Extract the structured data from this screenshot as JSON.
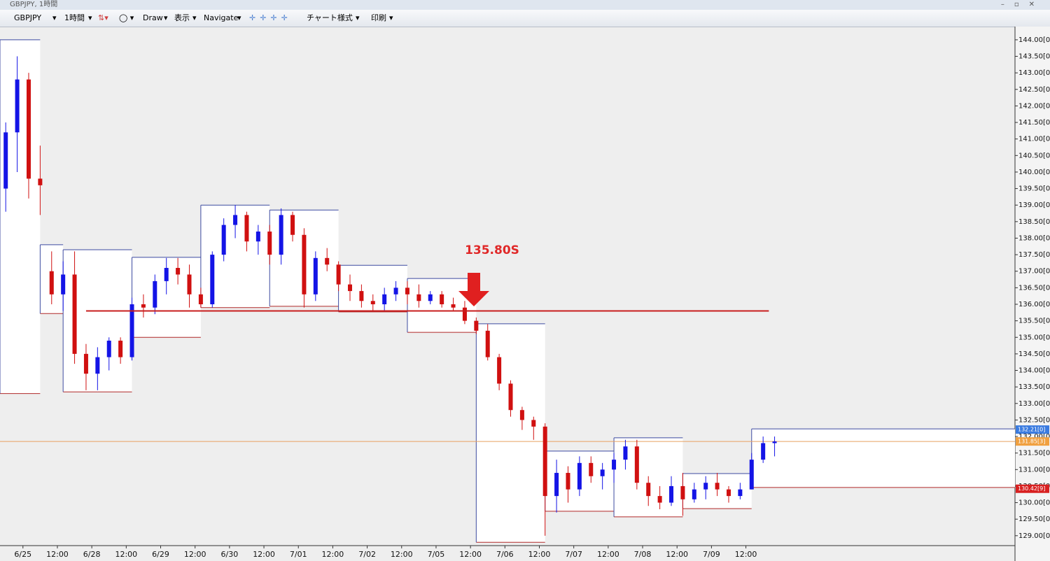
{
  "window": {
    "title": "GBPJPY, 1時間"
  },
  "toolbar": {
    "symbol": "GBPJPY",
    "timeframe": "1時間",
    "draw": "Draw",
    "view": "表示",
    "navigate": "Navigate",
    "chart_style": "チャート様式",
    "print": "印刷"
  },
  "chart_data": {
    "type": "candlestick",
    "xlim": [
      0,
      366
    ],
    "ylim": [
      128.7,
      144.4
    ],
    "xticks": [
      {
        "value": 8,
        "label": "6/25"
      },
      {
        "value": 20,
        "label": "12:00"
      },
      {
        "value": 32,
        "label": "6/28"
      },
      {
        "value": 44,
        "label": "12:00"
      },
      {
        "value": 56,
        "label": "6/29"
      },
      {
        "value": 68,
        "label": "12:00"
      },
      {
        "value": 80,
        "label": "6/30"
      },
      {
        "value": 92,
        "label": "12:00"
      },
      {
        "value": 104,
        "label": "7/01"
      },
      {
        "value": 116,
        "label": "12:00"
      },
      {
        "value": 128,
        "label": "7/02"
      },
      {
        "value": 140,
        "label": "12:00"
      },
      {
        "value": 152,
        "label": "7/05"
      },
      {
        "value": 164,
        "label": "12:00"
      },
      {
        "value": 176,
        "label": "7/06"
      },
      {
        "value": 188,
        "label": "12:00"
      },
      {
        "value": 200,
        "label": "7/07"
      },
      {
        "value": 212,
        "label": "12:00"
      },
      {
        "value": 224,
        "label": "7/08"
      },
      {
        "value": 236,
        "label": "12:00"
      },
      {
        "value": 248,
        "label": "7/09"
      },
      {
        "value": 260,
        "label": "12:00"
      }
    ],
    "yticks": [
      {
        "value": 129,
        "label": "129.00[0]"
      },
      {
        "value": 129.5,
        "label": "129.50[0]"
      },
      {
        "value": 130,
        "label": "130.00[0]"
      },
      {
        "value": 130.5,
        "label": "130.50[0]"
      },
      {
        "value": 131,
        "label": "131.00[0]"
      },
      {
        "value": 131.5,
        "label": "131.50[0]"
      },
      {
        "value": 132,
        "label": "132.00[0]"
      },
      {
        "value": 132.5,
        "label": "132.50[0]"
      },
      {
        "value": 133,
        "label": "133.00[0]"
      },
      {
        "value": 133.5,
        "label": "133.50[0]"
      },
      {
        "value": 134,
        "label": "134.00[0]"
      },
      {
        "value": 134.5,
        "label": "134.50[0]"
      },
      {
        "value": 135,
        "label": "135.00[0]"
      },
      {
        "value": 135.5,
        "label": "135.50[0]"
      },
      {
        "value": 136,
        "label": "136.00[0]"
      },
      {
        "value": 136.5,
        "label": "136.50[0]"
      },
      {
        "value": 137,
        "label": "137.00[0]"
      },
      {
        "value": 137.5,
        "label": "137.50[0]"
      },
      {
        "value": 138,
        "label": "138.00[0]"
      },
      {
        "value": 138.5,
        "label": "138.50[0]"
      },
      {
        "value": 139,
        "label": "139.00[0]"
      },
      {
        "value": 139.5,
        "label": "139.50[0]"
      },
      {
        "value": 140,
        "label": "140.00[0]"
      },
      {
        "value": 140.5,
        "label": "140.50[0]"
      },
      {
        "value": 141,
        "label": "141.00[0]"
      },
      {
        "value": 141.5,
        "label": "141.50[0]"
      },
      {
        "value": 142,
        "label": "142.00[0]"
      },
      {
        "value": 142.5,
        "label": "142.50[0]"
      },
      {
        "value": 143,
        "label": "143.00[0]"
      },
      {
        "value": 143.5,
        "label": "143.50[0]"
      },
      {
        "value": 144,
        "label": "144.00[0]"
      }
    ],
    "up_color": "#1414e6",
    "down_color": "#d01010",
    "x": [
      2,
      6,
      10,
      14,
      18,
      22,
      26,
      30,
      34,
      38,
      42,
      46,
      50,
      54,
      58,
      62,
      66,
      70,
      74,
      78,
      82,
      86,
      90,
      94,
      98,
      102,
      106,
      110,
      114,
      118,
      122,
      126,
      130,
      134,
      138,
      142,
      146,
      150,
      154,
      158,
      162,
      166,
      170,
      174,
      178,
      182,
      186,
      190,
      194,
      198,
      202,
      206,
      210,
      214,
      218,
      222,
      226,
      230,
      234,
      238,
      242,
      246,
      250,
      254,
      258,
      262,
      266,
      270
    ],
    "open": [
      139.5,
      141.2,
      142.8,
      139.8,
      137.0,
      136.3,
      136.9,
      134.5,
      133.9,
      134.4,
      134.9,
      134.4,
      136.0,
      135.9,
      136.7,
      137.1,
      136.9,
      136.3,
      136.0,
      137.5,
      138.4,
      138.7,
      137.9,
      138.2,
      137.5,
      138.7,
      138.1,
      136.3,
      137.4,
      137.2,
      136.6,
      136.4,
      136.1,
      136.0,
      136.3,
      136.5,
      136.3,
      136.1,
      136.3,
      136.0,
      135.9,
      135.5,
      135.2,
      134.4,
      133.6,
      132.8,
      132.5,
      132.3,
      130.2,
      130.9,
      130.4,
      131.2,
      130.8,
      131.0,
      131.3,
      131.7,
      130.6,
      130.2,
      130.0,
      130.5,
      130.1,
      130.4,
      130.6,
      130.4,
      130.2,
      130.4,
      131.3,
      131.8
    ],
    "high": [
      141.5,
      143.5,
      143.0,
      140.8,
      137.6,
      137.3,
      137.6,
      134.8,
      134.7,
      135.0,
      135.0,
      136.2,
      136.3,
      136.9,
      137.4,
      137.4,
      137.2,
      136.5,
      137.6,
      138.6,
      139.0,
      138.8,
      138.4,
      138.4,
      138.9,
      138.8,
      138.3,
      137.6,
      137.7,
      137.3,
      136.9,
      136.6,
      136.3,
      136.5,
      136.7,
      136.7,
      136.6,
      136.4,
      136.4,
      136.2,
      136.1,
      135.6,
      135.4,
      134.5,
      133.7,
      132.9,
      132.6,
      132.4,
      131.3,
      131.1,
      131.4,
      131.4,
      131.2,
      131.5,
      131.9,
      131.9,
      130.8,
      130.5,
      130.8,
      130.9,
      130.6,
      130.8,
      130.9,
      130.5,
      130.6,
      131.5,
      132.0,
      132.0
    ],
    "low": [
      138.8,
      140.0,
      139.2,
      138.7,
      136.0,
      135.8,
      134.2,
      133.4,
      133.4,
      134.0,
      134.2,
      134.3,
      135.6,
      135.7,
      136.3,
      136.6,
      135.9,
      135.9,
      135.9,
      137.3,
      138.0,
      137.6,
      137.5,
      137.2,
      137.2,
      137.9,
      135.9,
      136.1,
      137.0,
      136.4,
      136.1,
      135.9,
      135.8,
      135.8,
      136.1,
      136.0,
      135.9,
      136.0,
      135.9,
      135.8,
      135.4,
      135.1,
      134.3,
      133.4,
      132.6,
      132.2,
      131.9,
      129.0,
      129.7,
      130.0,
      130.2,
      130.6,
      130.4,
      130.6,
      131.0,
      130.4,
      129.9,
      129.8,
      129.9,
      129.6,
      130.0,
      130.1,
      130.2,
      130.0,
      130.1,
      130.4,
      131.2,
      131.4
    ],
    "close": [
      141.2,
      142.8,
      139.8,
      139.6,
      136.3,
      136.9,
      134.5,
      133.9,
      134.4,
      134.9,
      134.4,
      136.0,
      135.9,
      136.7,
      137.1,
      136.9,
      136.3,
      136.0,
      137.5,
      138.4,
      138.7,
      137.9,
      138.2,
      137.5,
      138.7,
      138.1,
      136.3,
      137.4,
      137.2,
      136.6,
      136.4,
      136.1,
      136.0,
      136.3,
      136.5,
      136.3,
      136.1,
      136.3,
      136.0,
      135.9,
      135.5,
      135.2,
      134.4,
      133.6,
      132.8,
      132.5,
      132.3,
      130.2,
      130.9,
      130.4,
      131.2,
      130.8,
      131.0,
      131.3,
      131.7,
      130.6,
      130.2,
      130.0,
      130.5,
      130.1,
      130.4,
      130.6,
      130.4,
      130.2,
      130.4,
      131.3,
      131.8,
      131.85
    ],
    "boxes": {
      "start": [
        0,
        14,
        22,
        46,
        70,
        94,
        118,
        142,
        166,
        190,
        214,
        238,
        262
      ],
      "end": [
        14,
        22,
        46,
        70,
        94,
        118,
        142,
        166,
        190,
        214,
        238,
        262,
        366
      ],
      "high": [
        144.0,
        137.8,
        137.65,
        137.42,
        139.0,
        138.85,
        137.18,
        136.78,
        135.41,
        131.56,
        131.96,
        130.88,
        132.23
      ],
      "low": [
        133.3,
        135.72,
        133.35,
        135.0,
        135.9,
        135.94,
        135.77,
        135.15,
        128.8,
        129.74,
        129.57,
        129.82,
        130.46
      ],
      "top_color": "#3c4aa0",
      "bottom_color": "#b02828"
    },
    "level": {
      "value": 135.8,
      "label": "135.80S",
      "start": 30,
      "end": 268,
      "color": "#c81e1e"
    },
    "price_line": {
      "value": 131.85,
      "color": "#e8a060"
    },
    "price_tags": [
      {
        "value": 132.21,
        "label": "132.21[0]",
        "color": "#3a7be0"
      },
      {
        "value": 131.85,
        "label": "131.85[3]",
        "color": "#f0a040"
      },
      {
        "value": 130.42,
        "label": "130.42[9]",
        "color": "#d82020"
      }
    ]
  }
}
